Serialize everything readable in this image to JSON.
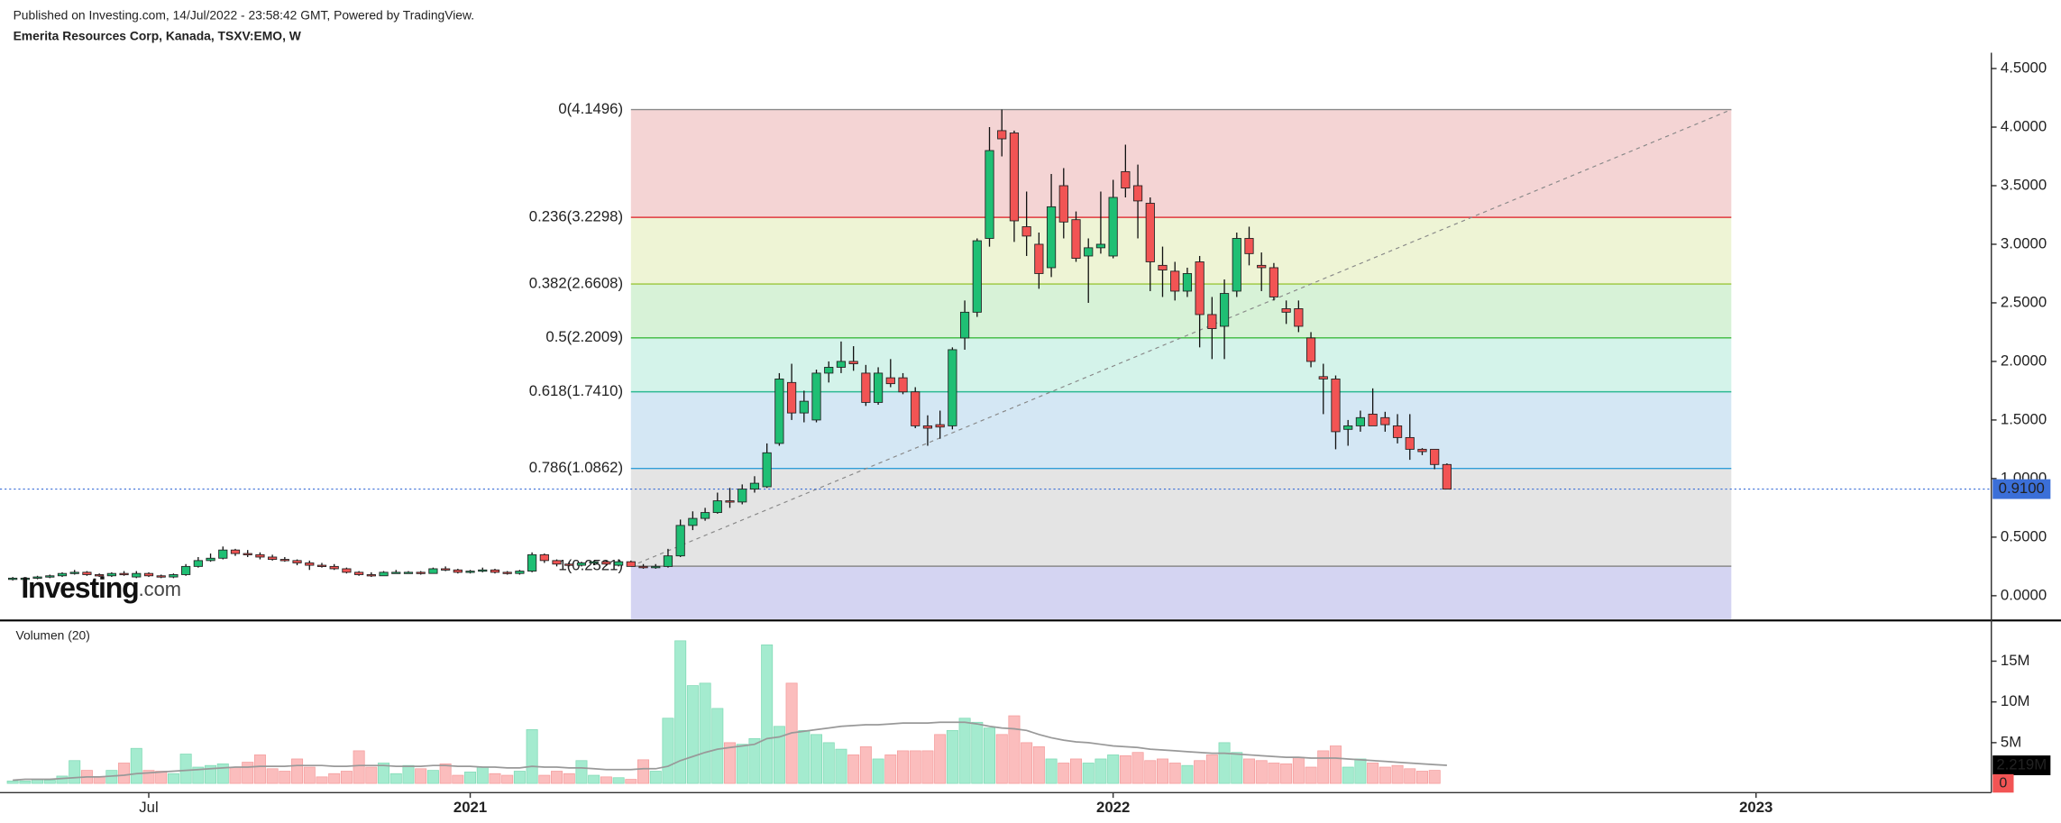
{
  "chart_data": {
    "type": "candlestick",
    "header": "Published on Investing.com, 14/Jul/2022 - 23:58:42 GMT, Powered by TradingView.",
    "title": "Emerita Resources Corp, Kanada, TSXV:EMO, W",
    "logo_main": "Investing",
    "logo_suffix": ".com",
    "categories": [
      null,
      null,
      null,
      null,
      null,
      null,
      null,
      null,
      null,
      null,
      null,
      "Jul",
      null,
      null,
      null,
      null,
      null,
      null,
      null,
      null,
      null,
      null,
      null,
      null,
      null,
      null,
      null,
      null,
      null,
      null,
      null,
      null,
      null,
      null,
      null,
      null,
      null,
      "2021",
      null,
      null,
      null,
      null,
      null,
      null,
      null,
      null,
      null,
      null,
      null,
      null,
      null,
      null,
      null,
      null,
      null,
      null,
      null,
      null,
      null,
      null,
      null,
      null,
      null,
      null,
      null,
      null,
      null,
      null,
      null,
      null,
      null,
      null,
      null,
      null,
      null,
      null,
      null,
      null,
      null,
      null,
      null,
      null,
      null,
      null,
      null,
      null,
      null,
      null,
      null,
      "2022",
      null,
      null,
      null,
      null,
      null,
      null,
      null,
      null,
      null,
      null,
      null,
      null,
      null,
      null,
      null,
      null,
      null,
      null,
      null,
      null,
      null,
      null,
      null,
      null,
      null,
      null,
      null,
      null,
      null,
      null,
      null,
      null,
      null,
      null,
      null,
      null,
      null,
      null,
      null,
      null,
      null,
      null,
      null,
      null,
      null,
      null,
      null,
      null,
      null,
      null,
      null,
      "2023",
      null,
      null,
      null,
      null,
      null,
      null,
      null,
      null,
      null,
      null,
      null,
      null,
      null,
      null,
      null,
      null,
      null,
      null
    ],
    "open": [
      0.14,
      0.15,
      0.15,
      0.16,
      0.17,
      0.19,
      0.2,
      0.18,
      0.17,
      0.19,
      0.16,
      0.19,
      0.17,
      0.16,
      0.18,
      0.25,
      0.3,
      0.32,
      0.39,
      0.36,
      0.35,
      0.33,
      0.31,
      0.3,
      0.28,
      0.26,
      0.25,
      0.23,
      0.2,
      0.18,
      0.17,
      0.2,
      0.2,
      0.2,
      0.19,
      0.23,
      0.22,
      0.2,
      0.21,
      0.22,
      0.2,
      0.19,
      0.21,
      0.35,
      0.3,
      0.27,
      0.26,
      0.28,
      0.29,
      0.26,
      0.29,
      0.25,
      0.24,
      0.25,
      0.34,
      0.6,
      0.66,
      0.71,
      0.81,
      0.8,
      0.91,
      0.93,
      1.3,
      1.82,
      1.56,
      1.5,
      1.9,
      1.95,
      2.0,
      1.9,
      1.65,
      1.86,
      1.86,
      1.74,
      1.45,
      1.46,
      1.45,
      2.2,
      2.42,
      3.05,
      3.97,
      3.95,
      3.15,
      3.0,
      2.8,
      3.5,
      3.21,
      2.9,
      2.97,
      2.9,
      3.62,
      3.5,
      3.35,
      2.82,
      2.77,
      2.6,
      2.85,
      2.4,
      2.3,
      2.6,
      3.05,
      2.82,
      2.8,
      2.45,
      2.45,
      2.2,
      1.87,
      1.85,
      1.42,
      1.45,
      1.55,
      1.52,
      1.45,
      1.35,
      1.25,
      1.25,
      1.12,
      null,
      null,
      null,
      null,
      null,
      null,
      null,
      null,
      null,
      null,
      null,
      null,
      null,
      null,
      null,
      null,
      null,
      null,
      null,
      null,
      null,
      null,
      null,
      null,
      null,
      null,
      null,
      null,
      null,
      null,
      null,
      null,
      null,
      null,
      null,
      null,
      null,
      null,
      null,
      null,
      null,
      null,
      null
    ],
    "high": [
      0.16,
      0.16,
      0.17,
      0.18,
      0.2,
      0.22,
      0.21,
      0.19,
      0.2,
      0.21,
      0.21,
      0.2,
      0.18,
      0.19,
      0.27,
      0.33,
      0.36,
      0.42,
      0.4,
      0.39,
      0.37,
      0.35,
      0.33,
      0.31,
      0.3,
      0.28,
      0.27,
      0.24,
      0.21,
      0.2,
      0.21,
      0.22,
      0.21,
      0.21,
      0.24,
      0.25,
      0.23,
      0.22,
      0.24,
      0.23,
      0.21,
      0.22,
      0.37,
      0.36,
      0.31,
      0.29,
      0.29,
      0.3,
      0.3,
      0.31,
      0.3,
      0.27,
      0.27,
      0.4,
      0.65,
      0.72,
      0.75,
      0.88,
      0.92,
      0.95,
      1.02,
      1.3,
      1.9,
      1.98,
      1.75,
      1.93,
      2.0,
      2.17,
      2.13,
      1.97,
      1.95,
      2.02,
      1.9,
      1.78,
      1.54,
      1.58,
      2.12,
      2.52,
      3.05,
      4.0,
      4.15,
      3.97,
      3.45,
      3.1,
      3.6,
      3.65,
      3.28,
      3.05,
      3.45,
      3.55,
      3.85,
      3.68,
      3.4,
      2.98,
      2.85,
      2.8,
      2.9,
      2.55,
      2.7,
      3.1,
      3.15,
      2.93,
      2.84,
      2.52,
      2.52,
      2.25,
      1.98,
      1.88,
      1.5,
      1.58,
      1.77,
      1.57,
      1.55,
      1.55,
      1.26,
      1.25,
      1.13,
      null,
      null,
      null,
      null,
      null,
      null,
      null,
      null,
      null,
      null,
      null,
      null,
      null,
      null,
      null,
      null,
      null,
      null,
      null,
      null,
      null,
      null,
      null,
      null,
      null,
      null,
      null,
      null,
      null,
      null,
      null,
      null,
      null,
      null,
      null,
      null,
      null,
      null,
      null,
      null,
      null,
      null,
      null
    ],
    "low": [
      0.13,
      0.14,
      0.14,
      0.15,
      0.16,
      0.18,
      0.17,
      0.16,
      0.16,
      0.17,
      0.15,
      0.16,
      0.15,
      0.15,
      0.17,
      0.24,
      0.29,
      0.31,
      0.34,
      0.33,
      0.31,
      0.3,
      0.29,
      0.26,
      0.22,
      0.24,
      0.22,
      0.19,
      0.17,
      0.16,
      0.17,
      0.19,
      0.19,
      0.18,
      0.19,
      0.21,
      0.19,
      0.19,
      0.2,
      0.19,
      0.18,
      0.18,
      0.2,
      0.28,
      0.25,
      0.25,
      0.25,
      0.26,
      0.26,
      0.25,
      0.25,
      0.23,
      0.23,
      0.24,
      0.33,
      0.56,
      0.64,
      0.7,
      0.75,
      0.78,
      0.88,
      0.92,
      1.28,
      1.5,
      1.48,
      1.48,
      1.82,
      1.9,
      1.92,
      1.62,
      1.63,
      1.78,
      1.72,
      1.43,
      1.28,
      1.34,
      1.42,
      2.1,
      2.38,
      2.98,
      3.75,
      3.02,
      2.9,
      2.62,
      2.72,
      3.05,
      2.85,
      2.5,
      2.92,
      2.88,
      3.4,
      3.05,
      2.6,
      2.55,
      2.52,
      2.55,
      2.12,
      2.02,
      2.02,
      2.55,
      2.82,
      2.6,
      2.52,
      2.32,
      2.25,
      1.95,
      1.55,
      1.25,
      1.28,
      1.4,
      1.45,
      1.4,
      1.3,
      1.16,
      1.2,
      1.08,
      0.91,
      null,
      null,
      null,
      null,
      null,
      null,
      null,
      null,
      null,
      null,
      null,
      null,
      null,
      null,
      null,
      null,
      null,
      null,
      null,
      null,
      null,
      null,
      null,
      null,
      null,
      null,
      null,
      null,
      null,
      null,
      null,
      null,
      null,
      null,
      null,
      null,
      null,
      null,
      null,
      null,
      null,
      null,
      null
    ],
    "close": [
      0.15,
      0.15,
      0.16,
      0.17,
      0.19,
      0.2,
      0.18,
      0.17,
      0.19,
      0.18,
      0.19,
      0.17,
      0.16,
      0.18,
      0.25,
      0.3,
      0.32,
      0.39,
      0.36,
      0.35,
      0.33,
      0.31,
      0.3,
      0.28,
      0.26,
      0.25,
      0.23,
      0.2,
      0.18,
      0.17,
      0.2,
      0.2,
      0.2,
      0.19,
      0.23,
      0.22,
      0.2,
      0.21,
      0.22,
      0.2,
      0.19,
      0.21,
      0.35,
      0.3,
      0.27,
      0.26,
      0.28,
      0.29,
      0.27,
      0.29,
      0.25,
      0.24,
      0.25,
      0.34,
      0.6,
      0.66,
      0.71,
      0.81,
      0.8,
      0.91,
      0.96,
      1.22,
      1.85,
      1.56,
      1.66,
      1.9,
      1.95,
      2.0,
      1.98,
      1.65,
      1.9,
      1.81,
      1.74,
      1.45,
      1.43,
      1.44,
      2.1,
      2.42,
      3.03,
      3.8,
      3.9,
      3.2,
      3.07,
      2.75,
      3.32,
      3.19,
      2.88,
      2.97,
      3.0,
      3.4,
      3.48,
      3.37,
      2.85,
      2.78,
      2.6,
      2.75,
      2.4,
      2.28,
      2.58,
      3.05,
      2.92,
      2.8,
      2.55,
      2.42,
      2.3,
      2.0,
      1.85,
      1.4,
      1.45,
      1.52,
      1.45,
      1.46,
      1.35,
      1.25,
      1.23,
      1.12,
      0.91,
      null,
      null,
      null,
      null,
      null,
      null,
      null,
      null,
      null,
      null,
      null,
      null,
      null,
      null,
      null,
      null,
      null,
      null,
      null,
      null,
      null,
      null,
      null,
      null,
      null,
      null,
      null,
      null,
      null,
      null,
      null,
      null,
      null,
      null,
      null,
      null,
      null,
      null,
      null,
      null,
      null,
      null,
      null
    ],
    "up_color": "#1fbf74",
    "down_color": "#f25454",
    "ylim": [
      -0.2,
      4.635
    ],
    "yticks": [
      {
        "value": 0,
        "label": "0.0000"
      },
      {
        "value": 0.5,
        "label": "0.5000"
      },
      {
        "value": 1,
        "label": "1.0000"
      },
      {
        "value": 1.5,
        "label": "1.5000"
      },
      {
        "value": 2,
        "label": "2.0000"
      },
      {
        "value": 2.5,
        "label": "2.5000"
      },
      {
        "value": 3,
        "label": "3.0000"
      },
      {
        "value": 3.5,
        "label": "3.5000"
      },
      {
        "value": 4,
        "label": "4.0000"
      },
      {
        "value": 4.5,
        "label": "4.5000"
      }
    ],
    "price_line": {
      "value": 0.91,
      "label": "0.9100",
      "color": "#3b6fd8"
    },
    "fib": [
      {
        "price": 4.1496,
        "label": "0(4.1496)",
        "color": "#8a8a8a",
        "fill": "#f4d4d4"
      },
      {
        "price": 3.2298,
        "label": "0.236(3.2298)",
        "color": "#e0393e",
        "fill": "#eef4d5"
      },
      {
        "price": 2.6608,
        "label": "0.382(2.6608)",
        "color": "#9cc63a",
        "fill": "#d7f2d7"
      },
      {
        "price": 2.2009,
        "label": "0.5(2.2009)",
        "color": "#3dba3d",
        "fill": "#d4f3ea"
      },
      {
        "price": 1.741,
        "label": "0.618(1.7410)",
        "color": "#2db892",
        "fill": "#d4e7f4"
      },
      {
        "price": 1.0862,
        "label": "0.786(1.0862)",
        "color": "#2f9ed8",
        "fill": "#e4e4e4"
      },
      {
        "price": 0.2521,
        "label": "1(0.2521)",
        "color": "#8a8a8a",
        "fill": "#d4d4f2"
      }
    ],
    "volume": {
      "title": "Volumen (20)",
      "up_color": "#a4ebcf",
      "down_color": "#fbbdbd",
      "ma_color": "#999999",
      "values": [
        0.3,
        0.3,
        0.5,
        0.4,
        0.9,
        2.8,
        1.6,
        0.8,
        1.6,
        2.5,
        4.3,
        1.6,
        1.5,
        1.2,
        3.6,
        2.0,
        2.2,
        2.4,
        2.0,
        2.6,
        3.5,
        1.8,
        1.5,
        3.0,
        2.0,
        0.8,
        1.2,
        1.5,
        4.0,
        2.0,
        2.5,
        1.2,
        2.2,
        1.8,
        1.6,
        2.4,
        1.0,
        1.4,
        2.0,
        1.2,
        1.0,
        1.5,
        6.6,
        1.0,
        1.5,
        1.2,
        2.8,
        1.0,
        0.8,
        0.7,
        0.5,
        2.9,
        1.5,
        8.0,
        17.5,
        12.0,
        12.3,
        9.2,
        5.0,
        4.8,
        5.5,
        17.0,
        7.0,
        12.3,
        6.5,
        6.0,
        5.0,
        4.2,
        3.5,
        4.5,
        3.0,
        3.5,
        4.0,
        4.0,
        4.0,
        6.0,
        6.5,
        8.0,
        7.5,
        6.8,
        6.0,
        8.3,
        5.0,
        4.5,
        3.0,
        2.5,
        3.0,
        2.5,
        3.0,
        3.5,
        3.4,
        3.8,
        2.8,
        3.0,
        2.5,
        2.2,
        2.8,
        3.5,
        5.0,
        3.8,
        3.0,
        2.8,
        2.5,
        2.4,
        3.2,
        2.0,
        4.0,
        4.6,
        2.0,
        3.0,
        2.5,
        2.0,
        2.2,
        1.8,
        1.5,
        1.6,
        0,
        null,
        null,
        null,
        null,
        null,
        null,
        null,
        null,
        null,
        null,
        null,
        null,
        null,
        null,
        null,
        null,
        null,
        null,
        null,
        null,
        null,
        null,
        null,
        null,
        null,
        null,
        null,
        null,
        null,
        null,
        null,
        null,
        null,
        null,
        null,
        null,
        null,
        null,
        null,
        null,
        null,
        null,
        null
      ],
      "ma": [
        0.4,
        0.5,
        0.5,
        0.5,
        0.6,
        0.7,
        0.8,
        0.8,
        0.9,
        1.0,
        1.2,
        1.3,
        1.4,
        1.5,
        1.6,
        1.7,
        1.8,
        1.9,
        2.0,
        2.0,
        2.1,
        2.1,
        2.1,
        2.2,
        2.2,
        2.2,
        2.1,
        2.1,
        2.2,
        2.2,
        2.2,
        2.1,
        2.1,
        2.1,
        2.2,
        2.2,
        2.1,
        2.1,
        2.0,
        2.0,
        1.9,
        1.9,
        2.1,
        2.0,
        2.0,
        1.9,
        1.9,
        1.8,
        1.7,
        1.7,
        1.7,
        1.8,
        1.8,
        2.1,
        2.8,
        3.3,
        3.8,
        4.2,
        4.4,
        4.6,
        4.8,
        5.5,
        5.7,
        6.2,
        6.4,
        6.6,
        6.8,
        7.0,
        7.1,
        7.2,
        7.2,
        7.3,
        7.4,
        7.4,
        7.4,
        7.5,
        7.5,
        7.5,
        7.3,
        7.0,
        6.8,
        6.7,
        6.5,
        6.0,
        5.6,
        5.3,
        5.1,
        5.0,
        4.8,
        4.6,
        4.5,
        4.4,
        4.2,
        4.1,
        4.0,
        3.9,
        3.8,
        3.7,
        3.7,
        3.6,
        3.5,
        3.4,
        3.3,
        3.2,
        3.2,
        3.1,
        3.1,
        3.1,
        3.0,
        2.9,
        2.8,
        2.7,
        2.6,
        2.5,
        2.4,
        2.3,
        2.219,
        null,
        null,
        null,
        null,
        null,
        null,
        null,
        null,
        null,
        null,
        null,
        null,
        null,
        null,
        null,
        null,
        null,
        null,
        null,
        null,
        null,
        null,
        null,
        null,
        null,
        null,
        null,
        null,
        null,
        null,
        null,
        null,
        null,
        null,
        null,
        null,
        null,
        null,
        null,
        null,
        null,
        null,
        null
      ],
      "ma_label": {
        "value": 2.219,
        "label": "2.219M"
      },
      "ylim": [
        -1.13,
        19.35
      ],
      "yticks": [
        {
          "value": 5,
          "label": "5M"
        },
        {
          "value": 10,
          "label": "10M"
        },
        {
          "value": 15,
          "label": "15M"
        }
      ]
    }
  }
}
